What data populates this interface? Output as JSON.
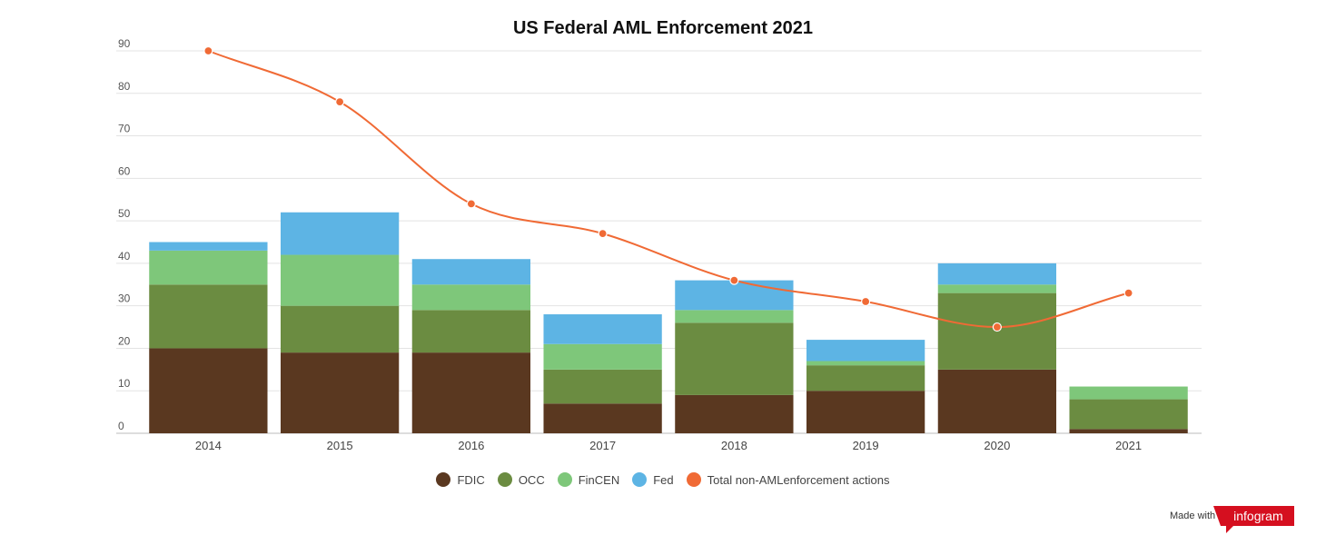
{
  "chart_data": {
    "type": "bar",
    "stacked": true,
    "title": "US Federal AML Enforcement 2021",
    "xlabel": "",
    "ylabel": "",
    "ylim": [
      0,
      90
    ],
    "yticks": [
      0,
      10,
      20,
      30,
      40,
      50,
      60,
      70,
      80,
      90
    ],
    "grid": true,
    "legend_position": "bottom",
    "categories": [
      "2014",
      "2015",
      "2016",
      "2017",
      "2018",
      "2019",
      "2020",
      "2021"
    ],
    "series": [
      {
        "name": "FDIC",
        "color": "#5a3820",
        "values": [
          20,
          19,
          19,
          7,
          9,
          10,
          15,
          1
        ]
      },
      {
        "name": "OCC",
        "color": "#6b8c41",
        "values": [
          15,
          11,
          10,
          8,
          17,
          6,
          18,
          7
        ]
      },
      {
        "name": "FinCEN",
        "color": "#7ec77a",
        "values": [
          8,
          12,
          6,
          6,
          3,
          1,
          2,
          3
        ]
      },
      {
        "name": "Fed",
        "color": "#5db4e4",
        "values": [
          2,
          10,
          6,
          7,
          7,
          5,
          5,
          0
        ]
      }
    ],
    "line_series": {
      "name": "Total non-AMLenforcement actions",
      "color": "#f06a35",
      "values": [
        90,
        78,
        54,
        47,
        36,
        31,
        25,
        33
      ]
    }
  },
  "credit": {
    "made_with": "Made with",
    "brand": "infogram"
  }
}
